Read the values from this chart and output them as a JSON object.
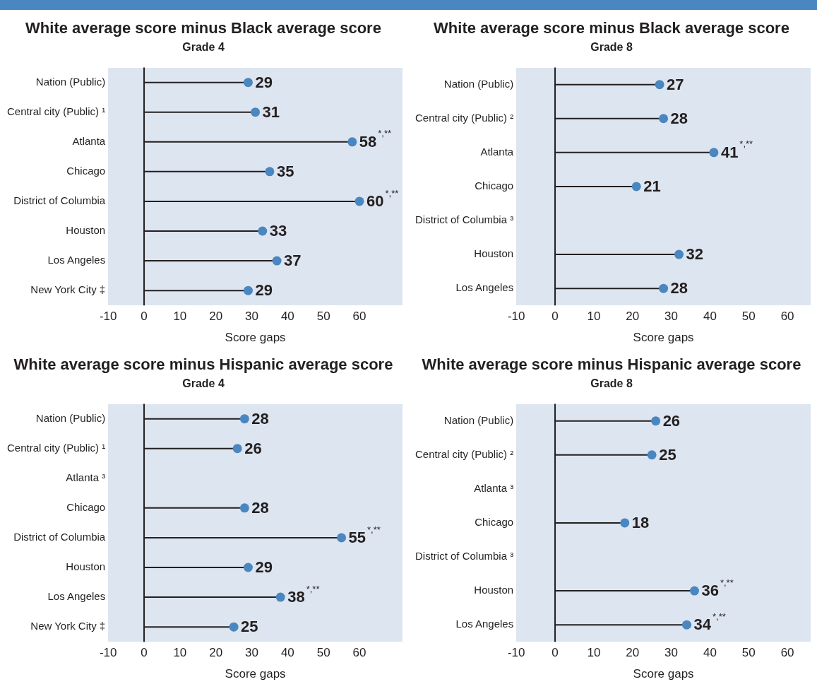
{
  "chart_data": [
    {
      "type": "lollipop",
      "title": "White average score minus Black average score",
      "subtitle": "Grade 4",
      "xlabel": "Score gaps",
      "categories": [
        "Nation (Public)",
        "Central city (Public) ¹",
        "Atlanta",
        "Chicago",
        "District of Columbia",
        "Houston",
        "Los Angeles",
        "New York City ‡"
      ],
      "series": [
        {
          "color": "#4a86c0",
          "values": [
            29,
            31,
            58,
            35,
            60,
            33,
            37,
            29
          ],
          "value_labels": [
            "29",
            "31",
            "58$^{*,**}$",
            "35",
            "60$^{*,**}$",
            "33",
            "37",
            "29"
          ]
        }
      ],
      "orientation": "horizontal",
      "xlim": [
        -10,
        72
      ],
      "xticks": [
        -10,
        0,
        10,
        20,
        30,
        40,
        50,
        60
      ],
      "ref_lines": [
        {
          "axis": "x",
          "value": 0,
          "color": "#231f20"
        }
      ],
      "marker": "circle",
      "grid": false,
      "legend": false
    },
    {
      "type": "lollipop",
      "title": "White average score minus Black average score",
      "subtitle": "Grade 8",
      "xlabel": "Score gaps",
      "categories": [
        "Nation (Public)",
        "Central city (Public) ²",
        "Atlanta",
        "Chicago",
        "District of Columbia ³",
        "Houston",
        "Los Angeles"
      ],
      "series": [
        {
          "color": "#4a86c0",
          "values": [
            27,
            28,
            41,
            21,
            null,
            32,
            28
          ],
          "value_labels": [
            "27",
            "28",
            "41$^{*,**}$",
            "21",
            null,
            "32",
            "28"
          ]
        }
      ],
      "orientation": "horizontal",
      "xlim": [
        -10,
        66
      ],
      "xticks": [
        -10,
        0,
        10,
        20,
        30,
        40,
        50,
        60
      ],
      "ref_lines": [
        {
          "axis": "x",
          "value": 0,
          "color": "#231f20"
        }
      ],
      "marker": "circle",
      "grid": false,
      "legend": false
    },
    {
      "type": "lollipop",
      "title": "White average score minus Hispanic average score",
      "subtitle": "Grade 4",
      "xlabel": "Score gaps",
      "categories": [
        "Nation (Public)",
        "Central city (Public) ¹",
        "Atlanta ³",
        "Chicago",
        "District of Columbia",
        "Houston",
        "Los Angeles",
        "New York City ‡"
      ],
      "series": [
        {
          "color": "#4a86c0",
          "values": [
            28,
            26,
            null,
            28,
            55,
            29,
            38,
            25
          ],
          "value_labels": [
            "28",
            "26",
            null,
            "28",
            "55$^{*,**}$",
            "29",
            "38$^{*,**}$",
            "25"
          ]
        }
      ],
      "orientation": "horizontal",
      "xlim": [
        -10,
        72
      ],
      "xticks": [
        -10,
        0,
        10,
        20,
        30,
        40,
        50,
        60
      ],
      "ref_lines": [
        {
          "axis": "x",
          "value": 0,
          "color": "#231f20"
        }
      ],
      "marker": "circle",
      "grid": false,
      "legend": false
    },
    {
      "type": "lollipop",
      "title": "White average score minus Hispanic average score",
      "subtitle": "Grade 8",
      "xlabel": "Score gaps",
      "categories": [
        "Nation (Public)",
        "Central city (Public) ²",
        "Atlanta ³",
        "Chicago",
        "District of Columbia ³",
        "Houston",
        "Los Angeles"
      ],
      "series": [
        {
          "color": "#4a86c0",
          "values": [
            26,
            25,
            null,
            18,
            null,
            36,
            34
          ],
          "value_labels": [
            "26",
            "25",
            null,
            "18",
            null,
            "36$^{*,**}$",
            "34$^{*,**}$"
          ]
        }
      ],
      "orientation": "horizontal",
      "xlim": [
        -10,
        66
      ],
      "xticks": [
        -10,
        0,
        10,
        20,
        30,
        40,
        50,
        60
      ],
      "ref_lines": [
        {
          "axis": "x",
          "value": 0,
          "color": "#231f20"
        }
      ],
      "marker": "circle",
      "grid": false,
      "legend": false
    }
  ]
}
